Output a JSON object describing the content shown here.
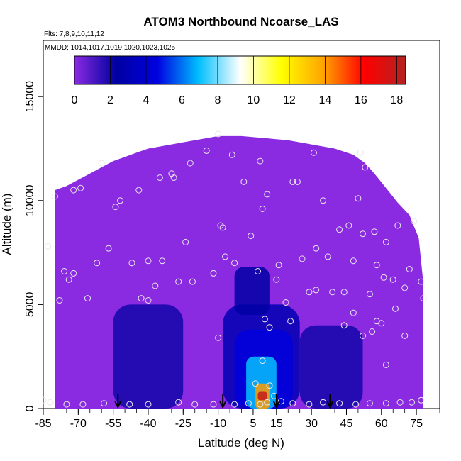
{
  "chart_data": {
    "type": "heatmap",
    "title": "ATOM3 Northbound Ncoarse_LAS",
    "annotations": {
      "flights": "Flts: 7,8,9,10,11,12",
      "dates": "MMDD: 1014,1017,1019,1020,1023,1025"
    },
    "xlabel": "Latitude (deg N)",
    "ylabel": "Altitude (m)",
    "xlim": [
      -85,
      85
    ],
    "ylim": [
      0,
      17700
    ],
    "xticks": [
      -85,
      -70,
      -55,
      -40,
      -25,
      -10,
      5,
      15,
      30,
      45,
      60,
      75
    ],
    "xtick_labels": [
      "-85",
      "-70",
      "-55",
      "-40",
      "-25",
      "-10",
      "5",
      "15",
      "30",
      "45",
      "60",
      "75"
    ],
    "xminor_step": 5,
    "yticks": [
      0,
      5000,
      10000,
      15000
    ],
    "ytick_labels": [
      "0",
      "5000",
      "10000",
      "15000"
    ],
    "colorbar": {
      "min": 0,
      "max": 18.5,
      "ticks": [
        0,
        2,
        4,
        6,
        8,
        10,
        12,
        14,
        16,
        18
      ],
      "tick_labels": [
        "0",
        "2",
        "4",
        "6",
        "8",
        "10",
        "12",
        "14",
        "16",
        "18"
      ],
      "colors": [
        "#8a2be2",
        "#0000a0",
        "#0000e0",
        "#00bfff",
        "#ffffff",
        "#ffff00",
        "#ffa500",
        "#ff0000",
        "#b22222"
      ]
    },
    "domain_top": [
      [
        -80,
        10500
      ],
      [
        -75,
        10700
      ],
      [
        -70,
        11000
      ],
      [
        -65,
        11300
      ],
      [
        -60,
        11600
      ],
      [
        -55,
        11900
      ],
      [
        -50,
        12100
      ],
      [
        -45,
        12300
      ],
      [
        -40,
        12500
      ],
      [
        -30,
        12700
      ],
      [
        -20,
        12900
      ],
      [
        -10,
        13100
      ],
      [
        0,
        13100
      ],
      [
        10,
        13000
      ],
      [
        20,
        12900
      ],
      [
        30,
        12700
      ],
      [
        40,
        12500
      ],
      [
        48,
        12200
      ],
      [
        53,
        11800
      ],
      [
        57,
        11300
      ],
      [
        62,
        10600
      ],
      [
        67,
        9900
      ],
      [
        72,
        9300
      ],
      [
        76,
        8200
      ],
      [
        78,
        6000
      ]
    ],
    "domain_bottom_x": [
      -80,
      78
    ],
    "features": [
      {
        "x": [
          -55,
          -25
        ],
        "y": [
          0,
          5000
        ],
        "value": 2.0
      },
      {
        "x": [
          -8,
          25
        ],
        "y": [
          0,
          5000
        ],
        "value": 3.0
      },
      {
        "x": [
          -3,
          22
        ],
        "y": [
          0,
          3800
        ],
        "value": 4.5
      },
      {
        "x": [
          2,
          15
        ],
        "y": [
          0,
          2500
        ],
        "value": 7.0
      },
      {
        "x": [
          6,
          12
        ],
        "y": [
          0,
          1200
        ],
        "value": 14.0
      },
      {
        "x": [
          7,
          11
        ],
        "y": [
          400,
          800
        ],
        "value": 18.0
      },
      {
        "x": [
          -3,
          12
        ],
        "y": [
          4500,
          6800
        ],
        "value": 2.5
      },
      {
        "x": [
          25,
          52
        ],
        "y": [
          0,
          4000
        ],
        "value": 2.0
      }
    ],
    "samples": [
      [
        -83,
        7800
      ],
      [
        -80,
        10200
      ],
      [
        -78,
        5200
      ],
      [
        -76,
        6600
      ],
      [
        -74,
        6200
      ],
      [
        -72,
        10500
      ],
      [
        -72,
        6500
      ],
      [
        -69,
        10600
      ],
      [
        -66,
        5300
      ],
      [
        -62,
        7000
      ],
      [
        -60,
        11800
      ],
      [
        -57,
        7700
      ],
      [
        -54,
        9700
      ],
      [
        -52,
        10000
      ],
      [
        -47,
        7000
      ],
      [
        -44,
        10500
      ],
      [
        -43,
        5300
      ],
      [
        -40,
        7100
      ],
      [
        -37,
        5900
      ],
      [
        -35,
        11100
      ],
      [
        -34,
        7100
      ],
      [
        -30,
        11300
      ],
      [
        -29,
        11100
      ],
      [
        -27,
        6100
      ],
      [
        -24,
        8000
      ],
      [
        -22,
        11800
      ],
      [
        -21,
        6100
      ],
      [
        -15,
        12400
      ],
      [
        -12,
        6500
      ],
      [
        -10,
        13200
      ],
      [
        -9,
        8800
      ],
      [
        -8,
        8700
      ],
      [
        -7,
        7300
      ],
      [
        -4,
        12200
      ],
      [
        -3,
        7000
      ],
      [
        1,
        10900
      ],
      [
        4,
        8300
      ],
      [
        7,
        6600
      ],
      [
        8,
        11900
      ],
      [
        9,
        9600
      ],
      [
        11,
        10300
      ],
      [
        15,
        6200
      ],
      [
        16,
        6900
      ],
      [
        19,
        5100
      ],
      [
        22,
        10900
      ],
      [
        24,
        10900
      ],
      [
        26,
        7200
      ],
      [
        29,
        5600
      ],
      [
        31,
        12300
      ],
      [
        32,
        7700
      ],
      [
        35,
        10000
      ],
      [
        37,
        7300
      ],
      [
        39,
        5600
      ],
      [
        42,
        8600
      ],
      [
        44,
        5600
      ],
      [
        46,
        8800
      ],
      [
        48,
        7100
      ],
      [
        50,
        10100
      ],
      [
        51,
        12300
      ],
      [
        52,
        8400
      ],
      [
        53,
        11600
      ],
      [
        55,
        5500
      ],
      [
        57,
        8500
      ],
      [
        58,
        6900
      ],
      [
        61,
        6300
      ],
      [
        62,
        8000
      ],
      [
        65,
        6200
      ],
      [
        67,
        8800
      ],
      [
        70,
        5800
      ],
      [
        72,
        6700
      ],
      [
        74,
        9000
      ],
      [
        77,
        6100
      ],
      [
        78,
        5300
      ],
      [
        -40,
        5200
      ],
      [
        -10,
        3400
      ],
      [
        10,
        4300
      ],
      [
        12,
        3900
      ],
      [
        21,
        4200
      ],
      [
        32,
        5700
      ],
      [
        44,
        4000
      ],
      [
        48,
        4600
      ],
      [
        52,
        3500
      ],
      [
        56,
        3700
      ],
      [
        58,
        4200
      ],
      [
        60,
        4100
      ],
      [
        62,
        2100
      ],
      [
        66,
        4800
      ],
      [
        70,
        3500
      ],
      [
        9,
        2300
      ],
      [
        6,
        1200
      ],
      [
        12,
        1100
      ],
      [
        14,
        600
      ],
      [
        -85,
        400
      ],
      [
        -82,
        300
      ],
      [
        -75,
        200
      ],
      [
        -68,
        200
      ],
      [
        -59,
        250
      ],
      [
        -48,
        200
      ],
      [
        -40,
        200
      ],
      [
        -27,
        300
      ],
      [
        -20,
        200
      ],
      [
        -12,
        200
      ],
      [
        -3,
        200
      ],
      [
        3,
        250
      ],
      [
        8,
        200
      ],
      [
        11,
        300
      ],
      [
        17,
        350
      ],
      [
        22,
        250
      ],
      [
        29,
        200
      ],
      [
        35,
        300
      ],
      [
        42,
        250
      ],
      [
        49,
        200
      ],
      [
        55,
        250
      ],
      [
        62,
        250
      ],
      [
        68,
        300
      ],
      [
        73,
        300
      ],
      [
        77,
        400
      ]
    ],
    "arrows_x": [
      -53,
      -8,
      15,
      38
    ]
  }
}
